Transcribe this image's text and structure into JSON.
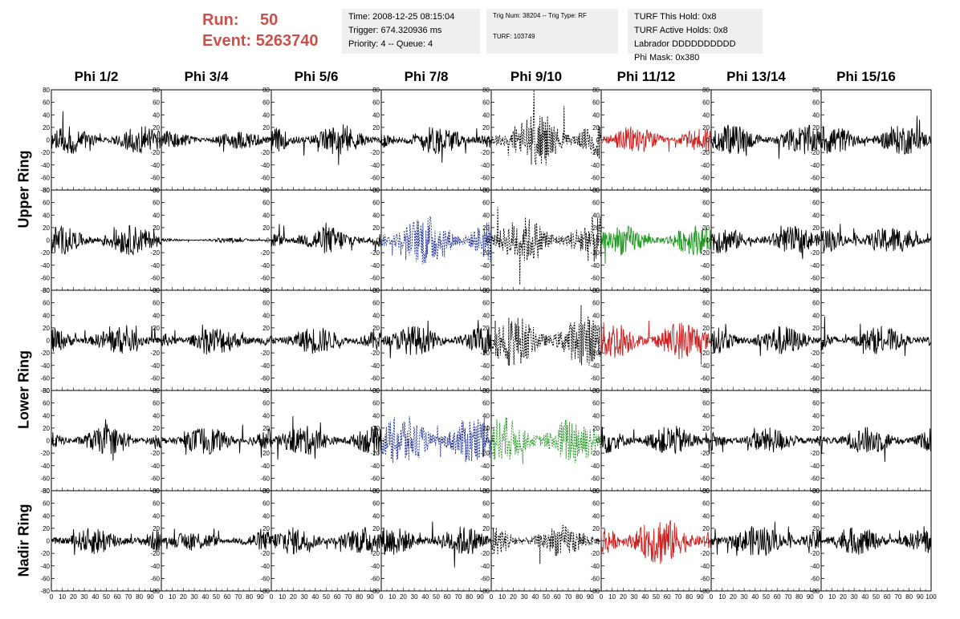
{
  "header": {
    "run_label": "Run:",
    "run_value": "50",
    "event_label": "Event:",
    "event_value": "5263740",
    "info_box_1": [
      "Time: 2008-12-25 08:15:04",
      "Trigger: 674.320936 ms",
      "Priority: 4 -- Queue: 4"
    ],
    "info_box_2": [
      "Trig Num: 38204 -- Trig Type: RF",
      "",
      "TURF: 103749"
    ],
    "info_box_3": [
      "TURF This Hold: 0x8",
      "TURF Active Holds: 0x8",
      "Labrador DDDDDDDDDD",
      "Phi Mask: 0x380"
    ]
  },
  "chart_data": {
    "type": "line",
    "columns": [
      "Phi 1/2",
      "Phi 3/4",
      "Phi 5/6",
      "Phi 7/8",
      "Phi 9/10",
      "Phi 11/12",
      "Phi 13/14",
      "Phi 15/16"
    ],
    "ring_labels": [
      "Upper Ring",
      "Lower Ring",
      "Nadir Ring"
    ],
    "rows": 5,
    "ylim": [
      -80,
      80
    ],
    "yticks": [
      -80,
      -60,
      -40,
      -20,
      0,
      20,
      40,
      60,
      80
    ],
    "ytick_labels": [
      "-80",
      "-60",
      "-40",
      "-20",
      "0",
      "20",
      "40",
      "60",
      "80"
    ],
    "xlim": [
      0,
      100
    ],
    "xticks": [
      0,
      10,
      20,
      30,
      40,
      50,
      60,
      70,
      80,
      90,
      100
    ],
    "xtick_labels": [
      "0",
      "10",
      "20",
      "30",
      "40",
      "50",
      "60",
      "70",
      "80",
      "90",
      "100"
    ],
    "colors": {
      "default": "#000000",
      "red": "#cc2222",
      "green": "#229922",
      "blue": "#223399"
    },
    "panels": [
      [
        {
          "c": "default",
          "a": 14
        },
        {
          "c": "default",
          "a": 9
        },
        {
          "c": "default",
          "a": 15
        },
        {
          "c": "default",
          "a": 15
        },
        {
          "c": "default",
          "a": 26,
          "d": true
        },
        {
          "c": "red",
          "a": 14
        },
        {
          "c": "default",
          "a": 15
        },
        {
          "c": "default",
          "a": 15
        }
      ],
      [
        {
          "c": "default",
          "a": 15
        },
        {
          "c": "default",
          "a": 2
        },
        {
          "c": "default",
          "a": 14
        },
        {
          "c": "blue",
          "a": 26,
          "d": true
        },
        {
          "c": "default",
          "a": 24,
          "d": true
        },
        {
          "c": "green",
          "a": 15
        },
        {
          "c": "default",
          "a": 14
        },
        {
          "c": "default",
          "a": 14
        }
      ],
      [
        {
          "c": "default",
          "a": 14
        },
        {
          "c": "default",
          "a": 14
        },
        {
          "c": "default",
          "a": 14
        },
        {
          "c": "default",
          "a": 15
        },
        {
          "c": "default",
          "a": 26,
          "d": true
        },
        {
          "c": "red",
          "a": 20
        },
        {
          "c": "default",
          "a": 15
        },
        {
          "c": "default",
          "a": 14
        }
      ],
      [
        {
          "c": "default",
          "a": 14
        },
        {
          "c": "default",
          "a": 14
        },
        {
          "c": "default",
          "a": 15
        },
        {
          "c": "blue",
          "a": 26,
          "d": true
        },
        {
          "c": "green",
          "a": 25,
          "d": true
        },
        {
          "c": "default",
          "a": 15
        },
        {
          "c": "default",
          "a": 13
        },
        {
          "c": "default",
          "a": 14
        }
      ],
      [
        {
          "c": "default",
          "a": 14
        },
        {
          "c": "default",
          "a": 10
        },
        {
          "c": "default",
          "a": 14
        },
        {
          "c": "default",
          "a": 15
        },
        {
          "c": "default",
          "a": 16,
          "d": true
        },
        {
          "c": "red",
          "a": 25
        },
        {
          "c": "default",
          "a": 16
        },
        {
          "c": "default",
          "a": 14
        }
      ]
    ]
  }
}
